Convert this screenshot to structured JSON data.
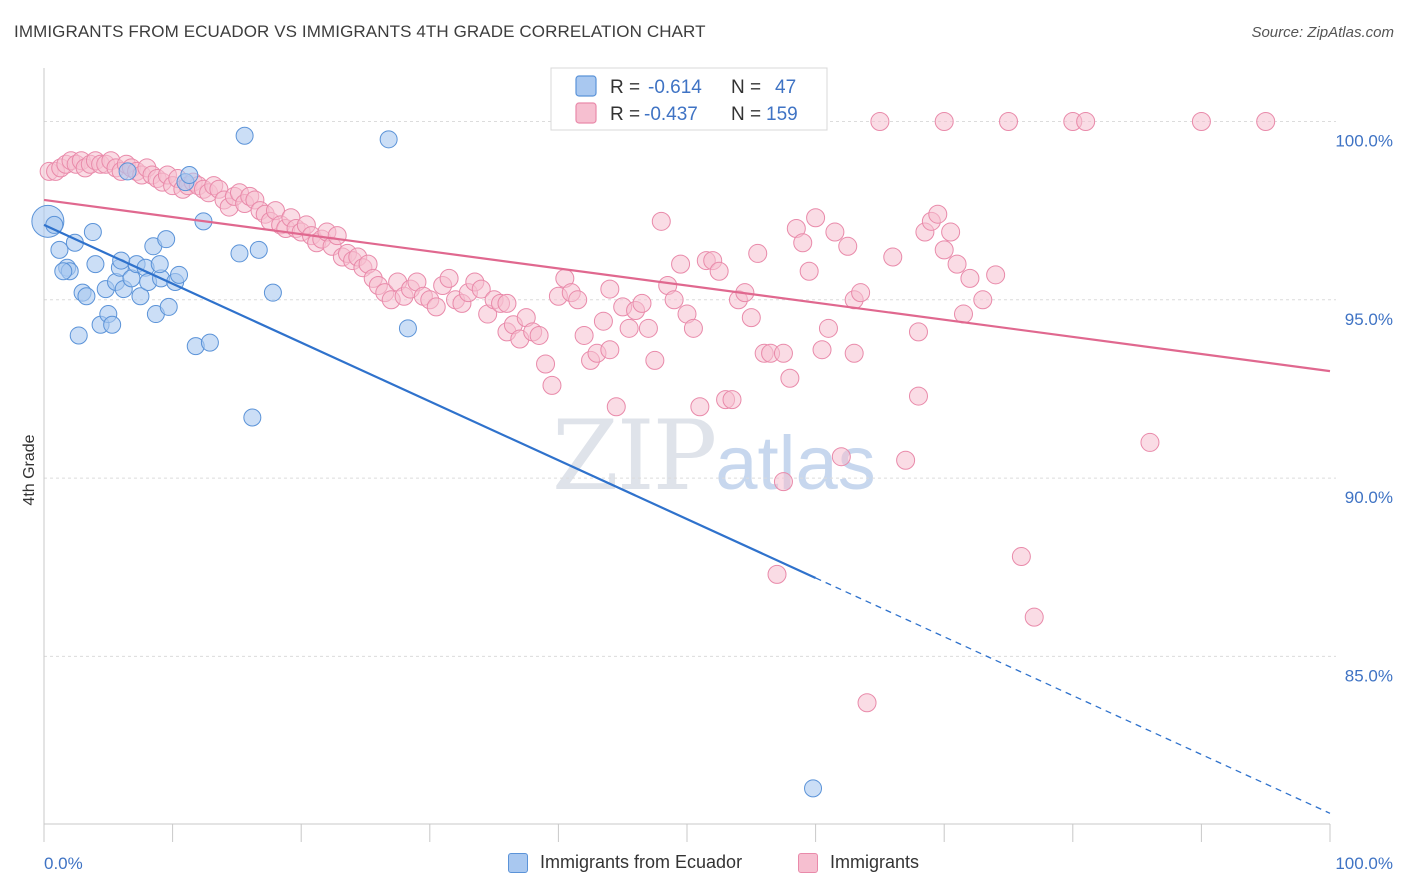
{
  "header": {
    "title": "IMMIGRANTS FROM ECUADOR VS IMMIGRANTS 4TH GRADE CORRELATION CHART",
    "source": "Source: ZipAtlas.com"
  },
  "watermark": {
    "zip": "ZIP",
    "atlas": "atlas"
  },
  "colors": {
    "blue_fill": "#a9c8f0",
    "blue_stroke": "#5b93d8",
    "blue_line": "#2f72cc",
    "pink_fill": "#f6bfd0",
    "pink_stroke": "#e98aaa",
    "pink_line": "#e0688f",
    "tick_label": "#3f73c4",
    "grid": "#dcdcdc"
  },
  "legend": {
    "rows": [
      {
        "r_label": "R =",
        "r_value": "-0.614",
        "n_label": "N =",
        "n_value": "47"
      },
      {
        "r_label": "R =",
        "r_value": "-0.437",
        "n_label": "N =",
        "n_value": "159"
      }
    ]
  },
  "bottom_legend": {
    "items": [
      {
        "label": "Immigrants from Ecuador"
      },
      {
        "label": "Immigrants"
      }
    ]
  },
  "chart_data": {
    "type": "scatter",
    "title": "IMMIGRANTS FROM ECUADOR VS IMMIGRANTS 4TH GRADE CORRELATION CHART",
    "xlabel": "",
    "ylabel": "4th Grade",
    "xlim": [
      0,
      100
    ],
    "ylim": [
      80.3,
      101.5
    ],
    "x_tick_labels": [
      "0.0%",
      "100.0%"
    ],
    "y_ticks": [
      85,
      90,
      95,
      100
    ],
    "y_tick_labels": [
      "85.0%",
      "90.0%",
      "95.0%",
      "100.0%"
    ],
    "grid": "horizontal dashed",
    "legend_position": "top-center",
    "series": [
      {
        "name": "Immigrants from Ecuador",
        "r": -0.614,
        "n": 47,
        "trend": {
          "x0": 0,
          "y0": 97.1,
          "x1": 60,
          "y1": 87.2,
          "dashed_to_x": 100,
          "dashed_to_y": 80.6
        },
        "points": [
          [
            0.3,
            97.2
          ],
          [
            0.8,
            97.1
          ],
          [
            1.2,
            96.4
          ],
          [
            1.8,
            95.9
          ],
          [
            2.0,
            95.8
          ],
          [
            2.4,
            96.6
          ],
          [
            2.7,
            94.0
          ],
          [
            3.0,
            95.2
          ],
          [
            3.3,
            95.1
          ],
          [
            3.8,
            96.9
          ],
          [
            4.0,
            96.0
          ],
          [
            4.4,
            94.3
          ],
          [
            4.8,
            95.3
          ],
          [
            5.0,
            94.6
          ],
          [
            5.3,
            94.3
          ],
          [
            5.6,
            95.5
          ],
          [
            5.9,
            95.9
          ],
          [
            6.2,
            95.3
          ],
          [
            6.5,
            98.6
          ],
          [
            6.8,
            95.6
          ],
          [
            7.2,
            96.0
          ],
          [
            7.5,
            95.1
          ],
          [
            7.9,
            95.9
          ],
          [
            8.1,
            95.5
          ],
          [
            8.5,
            96.5
          ],
          [
            8.7,
            94.6
          ],
          [
            9.1,
            95.6
          ],
          [
            9.5,
            96.7
          ],
          [
            9.7,
            94.8
          ],
          [
            10.2,
            95.5
          ],
          [
            10.5,
            95.7
          ],
          [
            11.0,
            98.3
          ],
          [
            11.3,
            98.5
          ],
          [
            11.8,
            93.7
          ],
          [
            12.4,
            97.2
          ],
          [
            12.9,
            93.8
          ],
          [
            15.2,
            96.3
          ],
          [
            15.6,
            99.6
          ],
          [
            16.2,
            91.7
          ],
          [
            16.7,
            96.4
          ],
          [
            17.8,
            95.2
          ],
          [
            26.8,
            99.5
          ],
          [
            28.3,
            94.2
          ],
          [
            59.8,
            81.3
          ],
          [
            1.5,
            95.8
          ],
          [
            6.0,
            96.1
          ],
          [
            9.0,
            96.0
          ]
        ]
      },
      {
        "name": "Immigrants",
        "r": -0.437,
        "n": 159,
        "trend": {
          "x0": 0,
          "y0": 97.8,
          "x1": 100,
          "y1": 93.0
        },
        "points": [
          [
            0.4,
            98.6
          ],
          [
            0.9,
            98.6
          ],
          [
            1.3,
            98.7
          ],
          [
            1.7,
            98.8
          ],
          [
            2.1,
            98.9
          ],
          [
            2.5,
            98.8
          ],
          [
            2.9,
            98.9
          ],
          [
            3.2,
            98.7
          ],
          [
            3.6,
            98.8
          ],
          [
            4.0,
            98.9
          ],
          [
            4.4,
            98.8
          ],
          [
            4.8,
            98.8
          ],
          [
            5.2,
            98.9
          ],
          [
            5.6,
            98.7
          ],
          [
            6.0,
            98.6
          ],
          [
            6.4,
            98.8
          ],
          [
            6.8,
            98.7
          ],
          [
            7.2,
            98.6
          ],
          [
            7.6,
            98.5
          ],
          [
            8.0,
            98.7
          ],
          [
            8.4,
            98.5
          ],
          [
            8.8,
            98.4
          ],
          [
            9.2,
            98.3
          ],
          [
            9.6,
            98.5
          ],
          [
            10.0,
            98.2
          ],
          [
            10.4,
            98.4
          ],
          [
            10.8,
            98.1
          ],
          [
            11.2,
            98.2
          ],
          [
            11.6,
            98.3
          ],
          [
            12.0,
            98.2
          ],
          [
            12.4,
            98.1
          ],
          [
            12.8,
            98.0
          ],
          [
            13.2,
            98.2
          ],
          [
            13.6,
            98.1
          ],
          [
            14.0,
            97.8
          ],
          [
            14.4,
            97.6
          ],
          [
            14.8,
            97.9
          ],
          [
            15.2,
            98.0
          ],
          [
            15.6,
            97.7
          ],
          [
            16.0,
            97.9
          ],
          [
            16.4,
            97.8
          ],
          [
            16.8,
            97.5
          ],
          [
            17.2,
            97.4
          ],
          [
            17.6,
            97.2
          ],
          [
            18.0,
            97.5
          ],
          [
            18.4,
            97.1
          ],
          [
            18.8,
            97.0
          ],
          [
            19.2,
            97.3
          ],
          [
            19.6,
            97.0
          ],
          [
            20.0,
            96.9
          ],
          [
            20.4,
            97.1
          ],
          [
            20.8,
            96.8
          ],
          [
            21.2,
            96.6
          ],
          [
            21.6,
            96.7
          ],
          [
            22.0,
            96.9
          ],
          [
            22.4,
            96.5
          ],
          [
            22.8,
            96.8
          ],
          [
            23.2,
            96.2
          ],
          [
            23.6,
            96.3
          ],
          [
            24.0,
            96.1
          ],
          [
            24.4,
            96.2
          ],
          [
            24.8,
            95.9
          ],
          [
            25.2,
            96.0
          ],
          [
            25.6,
            95.6
          ],
          [
            26.0,
            95.4
          ],
          [
            26.5,
            95.2
          ],
          [
            27.0,
            95.0
          ],
          [
            27.5,
            95.5
          ],
          [
            28.0,
            95.1
          ],
          [
            28.5,
            95.3
          ],
          [
            29.0,
            95.5
          ],
          [
            29.5,
            95.1
          ],
          [
            30.0,
            95.0
          ],
          [
            30.5,
            94.8
          ],
          [
            31.0,
            95.4
          ],
          [
            31.5,
            95.6
          ],
          [
            32.0,
            95.0
          ],
          [
            32.5,
            94.9
          ],
          [
            33.0,
            95.2
          ],
          [
            33.5,
            95.5
          ],
          [
            34.0,
            95.3
          ],
          [
            34.5,
            94.6
          ],
          [
            35.0,
            95.0
          ],
          [
            35.5,
            94.9
          ],
          [
            36.0,
            94.1
          ],
          [
            36.5,
            94.3
          ],
          [
            37.0,
            93.9
          ],
          [
            37.5,
            94.5
          ],
          [
            38.0,
            94.1
          ],
          [
            38.5,
            94.0
          ],
          [
            39.0,
            93.2
          ],
          [
            39.5,
            92.6
          ],
          [
            40.0,
            95.1
          ],
          [
            40.5,
            95.6
          ],
          [
            41.0,
            95.2
          ],
          [
            41.5,
            95.0
          ],
          [
            42.0,
            94.0
          ],
          [
            42.5,
            93.3
          ],
          [
            43.0,
            93.5
          ],
          [
            43.5,
            94.4
          ],
          [
            44.0,
            93.6
          ],
          [
            44.5,
            92.0
          ],
          [
            45.0,
            94.8
          ],
          [
            45.5,
            94.2
          ],
          [
            46.0,
            94.7
          ],
          [
            46.5,
            94.9
          ],
          [
            47.0,
            94.2
          ],
          [
            47.5,
            93.3
          ],
          [
            48.0,
            97.2
          ],
          [
            48.5,
            95.4
          ],
          [
            49.0,
            95.0
          ],
          [
            49.5,
            96.0
          ],
          [
            50.0,
            94.6
          ],
          [
            50.5,
            94.2
          ],
          [
            51.0,
            92.0
          ],
          [
            51.5,
            96.1
          ],
          [
            52.0,
            96.1
          ],
          [
            52.5,
            95.8
          ],
          [
            53.0,
            92.2
          ],
          [
            53.5,
            92.2
          ],
          [
            54.0,
            95.0
          ],
          [
            54.5,
            95.2
          ],
          [
            55.0,
            94.5
          ],
          [
            55.5,
            96.3
          ],
          [
            56.0,
            93.5
          ],
          [
            56.5,
            93.5
          ],
          [
            57.0,
            87.3
          ],
          [
            57.5,
            89.9
          ],
          [
            58.0,
            92.8
          ],
          [
            58.5,
            97.0
          ],
          [
            59.0,
            96.6
          ],
          [
            59.5,
            95.8
          ],
          [
            60.0,
            97.3
          ],
          [
            60.5,
            93.6
          ],
          [
            61.0,
            94.2
          ],
          [
            61.5,
            96.9
          ],
          [
            62.0,
            90.6
          ],
          [
            62.5,
            96.5
          ],
          [
            63.0,
            95.0
          ],
          [
            63.5,
            95.2
          ],
          [
            64.0,
            83.7
          ],
          [
            65.0,
            100.0
          ],
          [
            66.0,
            96.2
          ],
          [
            67.0,
            90.5
          ],
          [
            68.0,
            92.3
          ],
          [
            68.5,
            96.9
          ],
          [
            69.0,
            97.2
          ],
          [
            69.5,
            97.4
          ],
          [
            70.0,
            96.4
          ],
          [
            70.5,
            96.9
          ],
          [
            71.0,
            96.0
          ],
          [
            71.5,
            94.6
          ],
          [
            72.0,
            95.6
          ],
          [
            73.0,
            95.0
          ],
          [
            74.0,
            95.7
          ],
          [
            75.0,
            100.0
          ],
          [
            76.0,
            87.8
          ],
          [
            77.0,
            86.1
          ],
          [
            80.0,
            100.0
          ],
          [
            86.0,
            91.0
          ],
          [
            90.0,
            100.0
          ],
          [
            95.0,
            100.0
          ],
          [
            70.0,
            100.0
          ],
          [
            81.0,
            100.0
          ],
          [
            68.0,
            94.1
          ],
          [
            63.0,
            93.5
          ],
          [
            57.5,
            93.5
          ],
          [
            36.0,
            94.9
          ],
          [
            44.0,
            95.3
          ]
        ]
      }
    ]
  }
}
